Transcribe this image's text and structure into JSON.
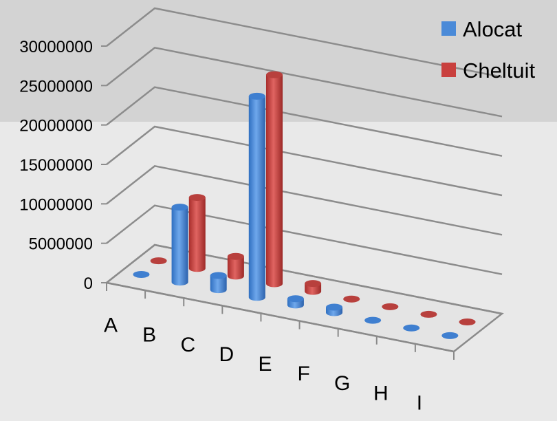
{
  "chart_data": {
    "type": "bar",
    "categories": [
      "A",
      "B",
      "C",
      "D",
      "E",
      "F",
      "G",
      "H",
      "I"
    ],
    "series": [
      {
        "name": "Alocat",
        "color": "#4a8ad8",
        "values": [
          0,
          9500000,
          1800000,
          25500000,
          800000,
          700000,
          0,
          0,
          0
        ]
      },
      {
        "name": "Cheltuit",
        "color": "#c9403e",
        "values": [
          0,
          9000000,
          2500000,
          26500000,
          1000000,
          0,
          0,
          0,
          0
        ]
      }
    ],
    "yticks": [
      "0",
      "5000000",
      "10000000",
      "15000000",
      "20000000",
      "25000000",
      "30000000"
    ],
    "ylim": [
      0,
      30000000
    ],
    "legend_position": "top-right",
    "grid": true
  }
}
